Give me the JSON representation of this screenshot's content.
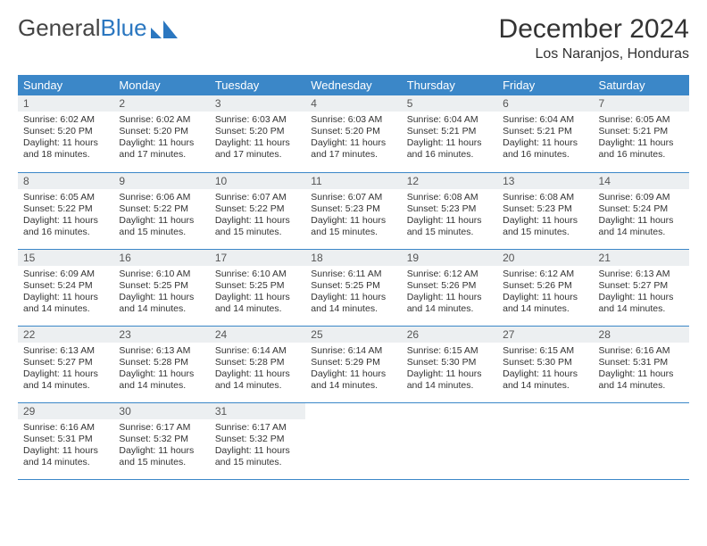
{
  "logo": {
    "text1": "General",
    "text2": "Blue"
  },
  "title": "December 2024",
  "location": "Los Naranjos, Honduras",
  "header_bg": "#3b87c8",
  "daynum_bg": "#eceff1",
  "weekdays": [
    "Sunday",
    "Monday",
    "Tuesday",
    "Wednesday",
    "Thursday",
    "Friday",
    "Saturday"
  ],
  "weeks": [
    [
      {
        "num": "1",
        "sr": "6:02 AM",
        "ss": "5:20 PM",
        "dl": "11 hours and 18 minutes."
      },
      {
        "num": "2",
        "sr": "6:02 AM",
        "ss": "5:20 PM",
        "dl": "11 hours and 17 minutes."
      },
      {
        "num": "3",
        "sr": "6:03 AM",
        "ss": "5:20 PM",
        "dl": "11 hours and 17 minutes."
      },
      {
        "num": "4",
        "sr": "6:03 AM",
        "ss": "5:20 PM",
        "dl": "11 hours and 17 minutes."
      },
      {
        "num": "5",
        "sr": "6:04 AM",
        "ss": "5:21 PM",
        "dl": "11 hours and 16 minutes."
      },
      {
        "num": "6",
        "sr": "6:04 AM",
        "ss": "5:21 PM",
        "dl": "11 hours and 16 minutes."
      },
      {
        "num": "7",
        "sr": "6:05 AM",
        "ss": "5:21 PM",
        "dl": "11 hours and 16 minutes."
      }
    ],
    [
      {
        "num": "8",
        "sr": "6:05 AM",
        "ss": "5:22 PM",
        "dl": "11 hours and 16 minutes."
      },
      {
        "num": "9",
        "sr": "6:06 AM",
        "ss": "5:22 PM",
        "dl": "11 hours and 15 minutes."
      },
      {
        "num": "10",
        "sr": "6:07 AM",
        "ss": "5:22 PM",
        "dl": "11 hours and 15 minutes."
      },
      {
        "num": "11",
        "sr": "6:07 AM",
        "ss": "5:23 PM",
        "dl": "11 hours and 15 minutes."
      },
      {
        "num": "12",
        "sr": "6:08 AM",
        "ss": "5:23 PM",
        "dl": "11 hours and 15 minutes."
      },
      {
        "num": "13",
        "sr": "6:08 AM",
        "ss": "5:23 PM",
        "dl": "11 hours and 15 minutes."
      },
      {
        "num": "14",
        "sr": "6:09 AM",
        "ss": "5:24 PM",
        "dl": "11 hours and 14 minutes."
      }
    ],
    [
      {
        "num": "15",
        "sr": "6:09 AM",
        "ss": "5:24 PM",
        "dl": "11 hours and 14 minutes."
      },
      {
        "num": "16",
        "sr": "6:10 AM",
        "ss": "5:25 PM",
        "dl": "11 hours and 14 minutes."
      },
      {
        "num": "17",
        "sr": "6:10 AM",
        "ss": "5:25 PM",
        "dl": "11 hours and 14 minutes."
      },
      {
        "num": "18",
        "sr": "6:11 AM",
        "ss": "5:25 PM",
        "dl": "11 hours and 14 minutes."
      },
      {
        "num": "19",
        "sr": "6:12 AM",
        "ss": "5:26 PM",
        "dl": "11 hours and 14 minutes."
      },
      {
        "num": "20",
        "sr": "6:12 AM",
        "ss": "5:26 PM",
        "dl": "11 hours and 14 minutes."
      },
      {
        "num": "21",
        "sr": "6:13 AM",
        "ss": "5:27 PM",
        "dl": "11 hours and 14 minutes."
      }
    ],
    [
      {
        "num": "22",
        "sr": "6:13 AM",
        "ss": "5:27 PM",
        "dl": "11 hours and 14 minutes."
      },
      {
        "num": "23",
        "sr": "6:13 AM",
        "ss": "5:28 PM",
        "dl": "11 hours and 14 minutes."
      },
      {
        "num": "24",
        "sr": "6:14 AM",
        "ss": "5:28 PM",
        "dl": "11 hours and 14 minutes."
      },
      {
        "num": "25",
        "sr": "6:14 AM",
        "ss": "5:29 PM",
        "dl": "11 hours and 14 minutes."
      },
      {
        "num": "26",
        "sr": "6:15 AM",
        "ss": "5:30 PM",
        "dl": "11 hours and 14 minutes."
      },
      {
        "num": "27",
        "sr": "6:15 AM",
        "ss": "5:30 PM",
        "dl": "11 hours and 14 minutes."
      },
      {
        "num": "28",
        "sr": "6:16 AM",
        "ss": "5:31 PM",
        "dl": "11 hours and 14 minutes."
      }
    ],
    [
      {
        "num": "29",
        "sr": "6:16 AM",
        "ss": "5:31 PM",
        "dl": "11 hours and 14 minutes."
      },
      {
        "num": "30",
        "sr": "6:17 AM",
        "ss": "5:32 PM",
        "dl": "11 hours and 15 minutes."
      },
      {
        "num": "31",
        "sr": "6:17 AM",
        "ss": "5:32 PM",
        "dl": "11 hours and 15 minutes."
      },
      null,
      null,
      null,
      null
    ]
  ],
  "labels": {
    "sunrise": "Sunrise: ",
    "sunset": "Sunset: ",
    "daylight": "Daylight: "
  }
}
